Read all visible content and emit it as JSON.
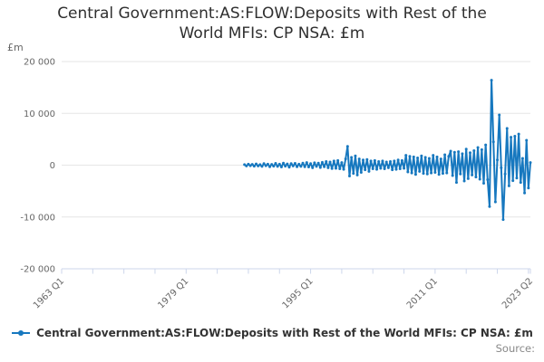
{
  "title": "Central Government:AS:FLOW:Deposits with Rest of the World MFIs: CP NSA: £m",
  "y_axis": {
    "unit": "£m",
    "tick_labels": [
      "20 000",
      "10 000",
      "0",
      "-10 000",
      "-20 000"
    ],
    "tick_values": [
      20000,
      10000,
      0,
      -10000,
      -20000
    ]
  },
  "x_axis": {
    "labeled_ticks": [
      {
        "label": "1963 Q1",
        "t": 1963
      },
      {
        "label": "1979 Q1",
        "t": 1979
      },
      {
        "label": "1995 Q1",
        "t": 1995
      },
      {
        "label": "2011 Q1",
        "t": 2011
      },
      {
        "label": "2023 Q2",
        "t": 2023.25
      }
    ],
    "minor_tick_start": 1963,
    "minor_tick_step": 4,
    "minor_tick_end": 2023,
    "range": [
      1963,
      2023.25
    ]
  },
  "legend": {
    "label": "Central Government:AS:FLOW:Deposits with Rest of the World MFIs: CP NSA: £m"
  },
  "footer": {
    "source_label": "Source:"
  },
  "colors": {
    "series": "#1778bf",
    "grid": "#e6e6e6",
    "axis": "#ccd6eb",
    "tick_text": "#666666",
    "title_text": "#2f2f2f",
    "source_text": "#888888"
  },
  "chart_data": {
    "type": "line",
    "title": "Central Government:AS:FLOW:Deposits with Rest of the World MFIs: CP NSA: £m",
    "xlabel": "",
    "ylabel": "£m",
    "ylim": [
      -20000,
      20000
    ],
    "xlim_quarters": [
      "1963 Q1",
      "2023 Q2"
    ],
    "grid": "horizontal",
    "legend_position": "bottom",
    "series_name": "Central Government:AS:FLOW:Deposits with Rest of the World MFIs: CP NSA: £m",
    "x_start": 1986.5,
    "x_step": 0.25,
    "x_start_label": "1986 Q3",
    "x_end_label": "2023 Q2",
    "values": [
      100,
      -150,
      200,
      -100,
      150,
      -200,
      250,
      -150,
      100,
      -250,
      300,
      -100,
      200,
      -300,
      150,
      -200,
      350,
      -250,
      200,
      -350,
      400,
      -200,
      250,
      -400,
      300,
      -150,
      350,
      -300,
      200,
      -250,
      400,
      -300,
      500,
      -350,
      300,
      -500,
      450,
      -250,
      400,
      -450,
      550,
      -300,
      700,
      -500,
      600,
      -650,
      800,
      -600,
      900,
      -700,
      500,
      -800,
      1200,
      3630,
      -2100,
      1500,
      -1600,
      1800,
      -1900,
      1200,
      -1400,
      1000,
      -900,
      1100,
      -1200,
      800,
      -700,
      900,
      -800,
      700,
      -600,
      800,
      -700,
      600,
      -500,
      700,
      -900,
      800,
      -800,
      1000,
      -700,
      900,
      -600,
      1900,
      -1300,
      1700,
      -1500,
      1600,
      -1800,
      1400,
      -1200,
      1800,
      -1600,
      1500,
      -1700,
      1300,
      -1500,
      1900,
      -1400,
      1600,
      -1800,
      1200,
      -1600,
      2000,
      -1500,
      1700,
      2700,
      -2000,
      2500,
      -3350,
      2600,
      -1700,
      2200,
      -3050,
      3100,
      -2600,
      2400,
      -1900,
      2800,
      -2300,
      3400,
      -2700,
      3000,
      -3500,
      3900,
      -2800,
      -8000,
      16400,
      4500,
      -7100,
      1000,
      9700,
      -500,
      -10500,
      -1700,
      7100,
      -4000,
      5400,
      -3000,
      5600,
      -2500,
      6000,
      -3350,
      1300,
      -5380,
      4800,
      -4400,
      500
    ]
  }
}
